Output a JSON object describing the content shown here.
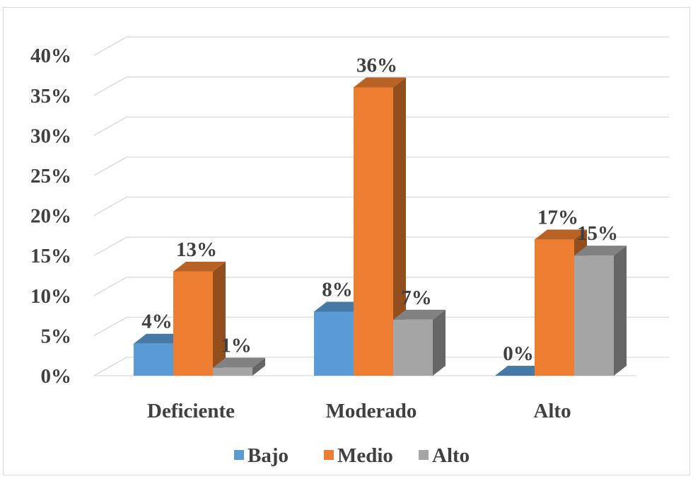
{
  "chart_data": {
    "type": "bar",
    "title": "",
    "xlabel": "",
    "ylabel": "",
    "categories": [
      "Deficiente",
      "Moderado",
      "Alto"
    ],
    "series": [
      {
        "name": "Bajo",
        "color": "#5b9bd5",
        "values": [
          4,
          8,
          0
        ],
        "labels": [
          "4%",
          "8%",
          "0%"
        ]
      },
      {
        "name": "Medio",
        "color": "#ed7d31",
        "values": [
          13,
          36,
          17
        ],
        "labels": [
          "13%",
          "36%",
          "17%"
        ]
      },
      {
        "name": "Alto",
        "color": "#a5a5a5",
        "values": [
          1,
          7,
          15
        ],
        "labels": [
          "1%",
          "7%",
          "15%"
        ]
      }
    ],
    "ylim": [
      0,
      40
    ],
    "yticks": [
      0,
      5,
      10,
      15,
      20,
      25,
      30,
      35,
      40
    ],
    "ytick_labels": [
      "0%",
      "5%",
      "10%",
      "15%",
      "20%",
      "25%",
      "30%",
      "35%",
      "40%"
    ],
    "grid": true,
    "style": "3d-clustered-column",
    "legend_position": "bottom"
  }
}
